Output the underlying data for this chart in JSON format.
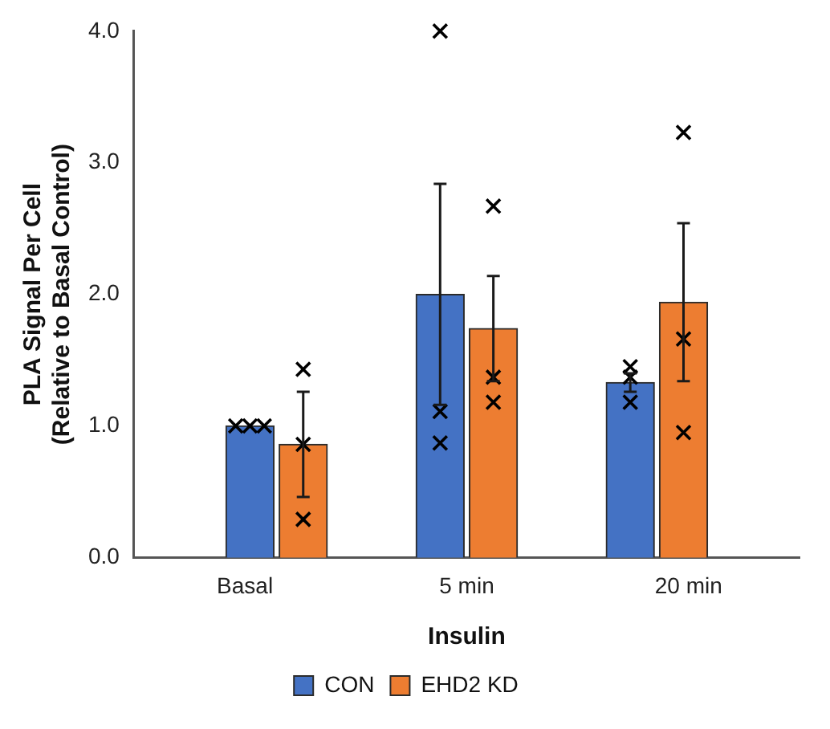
{
  "chart_data": {
    "type": "bar",
    "xlabel": "Insulin",
    "ylabel": "PLA Signal Per Cell\n(Relative to Basal Control)",
    "categories": [
      "Basal",
      "5 min",
      "20 min"
    ],
    "series": [
      {
        "name": "CON",
        "color": "#4472c4",
        "values": [
          1.0,
          2.0,
          1.33
        ],
        "errors": [
          null,
          0.84,
          0.07
        ]
      },
      {
        "name": "EHD2 KD",
        "color": "#ed7d31",
        "values": [
          0.86,
          1.74,
          1.94
        ],
        "errors": [
          0.4,
          0.4,
          0.6
        ]
      },
      {
        "type": "scatter",
        "color": "#000000",
        "marker": "cross",
        "x": [
          "Basal",
          "Basal",
          "Basal",
          "5 min",
          "5 min",
          "5 min",
          "20 min",
          "20 min",
          "20 min"
        ],
        "values": [
          1.0,
          1.0,
          1.0,
          4.0,
          1.11,
          0.87,
          1.45,
          1.37,
          1.18
        ]
      },
      {
        "type": "scatter",
        "color": "#000000",
        "marker": "cross",
        "x": [
          "Basal",
          "Basal",
          "Basal",
          "5 min",
          "5 min",
          "5 min",
          "20 min",
          "20 min",
          "20 min"
        ],
        "values": [
          1.43,
          0.86,
          0.29,
          2.67,
          1.37,
          1.18,
          3.23,
          1.66,
          0.95
        ]
      }
    ],
    "ylim": [
      0,
      4
    ],
    "yticks": [
      {
        "value": 0,
        "label": "0.0"
      },
      {
        "value": 1,
        "label": "1.0"
      },
      {
        "value": 2,
        "label": "2.0"
      },
      {
        "value": 3,
        "label": "3.0"
      },
      {
        "value": 4,
        "label": "4.0"
      }
    ],
    "grid": false,
    "legend": "bottom"
  }
}
